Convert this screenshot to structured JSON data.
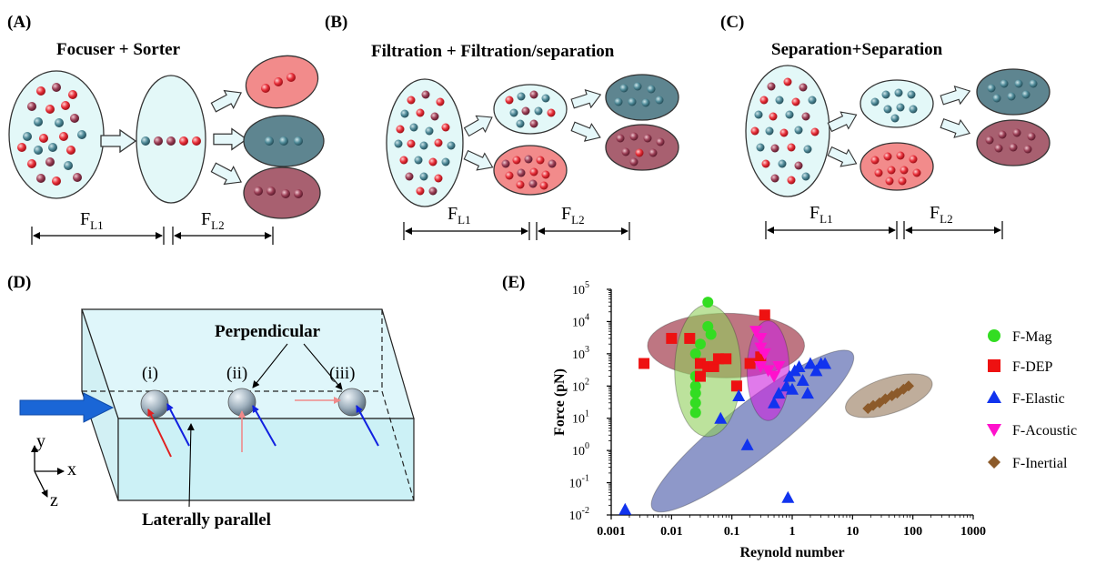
{
  "panels": {
    "a": {
      "tag": "(A)",
      "title": "Focuser + Sorter",
      "f1": "F",
      "f1_sub": "L1",
      "f2": "F",
      "f2_sub": "L2"
    },
    "b": {
      "tag": "(B)",
      "title": "Filtration + Filtration/separation",
      "f1": "F",
      "f1_sub": "L1",
      "f2": "F",
      "f2_sub": "L2"
    },
    "c": {
      "tag": "(C)",
      "title": "Separation+Separation",
      "f1": "F",
      "f1_sub": "L1",
      "f2": "F",
      "f2_sub": "L2"
    },
    "d": {
      "tag": "(D)",
      "perpendicular": "Perpendicular",
      "laterally": "Laterally parallel",
      "pos_i": "(i)",
      "pos_ii": "(ii)",
      "pos_iii": "(iii)",
      "axis_x": "x",
      "axis_y": "y",
      "axis_z": "z"
    },
    "e": {
      "tag": "(E)"
    }
  },
  "colors": {
    "cell_fill": "#e3f8f8",
    "red_particle": "#e8303a",
    "teal_particle": "#4f8a98",
    "maroon_particle": "#9c4057",
    "red_outlet": "#f28b8b",
    "teal_outlet": "#5e8590",
    "maroon_outlet": "#a86070",
    "arrow_blue": "#1a66d6"
  },
  "chart_data": {
    "type": "scatter",
    "xlabel": "Reynold number",
    "ylabel": "Force (pN)",
    "xscale": "log",
    "yscale": "log",
    "xlim": [
      0.001,
      1000
    ],
    "ylim": [
      0.01,
      100000
    ],
    "x_ticks": [
      "0.001",
      "0.01",
      "0.1",
      "1",
      "10",
      "100",
      "1000"
    ],
    "y_ticks": [
      {
        "base": "10",
        "exp": "-2"
      },
      {
        "base": "10",
        "exp": "-1"
      },
      {
        "base": "10",
        "exp": "0"
      },
      {
        "base": "10",
        "exp": "1"
      },
      {
        "base": "10",
        "exp": "2"
      },
      {
        "base": "10",
        "exp": "3"
      },
      {
        "base": "10",
        "exp": "4"
      },
      {
        "base": "10",
        "exp": "5"
      }
    ],
    "legend_position": "right",
    "series": [
      {
        "name": "F-Mag",
        "marker": "circle",
        "color": "#33dd22",
        "points": [
          [
            0.025,
            15
          ],
          [
            0.025,
            30
          ],
          [
            0.025,
            60
          ],
          [
            0.025,
            100
          ],
          [
            0.025,
            200
          ],
          [
            0.025,
            1000
          ],
          [
            0.04,
            40000
          ],
          [
            0.04,
            7000
          ],
          [
            0.03,
            2000
          ],
          [
            0.045,
            4000
          ]
        ]
      },
      {
        "name": "F-DEP",
        "marker": "square",
        "color": "#ee1111",
        "points": [
          [
            0.0035,
            500
          ],
          [
            0.01,
            3000
          ],
          [
            0.02,
            3000
          ],
          [
            0.03,
            500
          ],
          [
            0.03,
            200
          ],
          [
            0.04,
            400
          ],
          [
            0.05,
            400
          ],
          [
            0.06,
            700
          ],
          [
            0.08,
            700
          ],
          [
            0.12,
            100
          ],
          [
            0.2,
            500
          ],
          [
            0.3,
            800
          ],
          [
            0.35,
            16000
          ]
        ]
      },
      {
        "name": "F-Elastic",
        "marker": "triangle-up",
        "color": "#1133ee",
        "points": [
          [
            0.0017,
            0.015
          ],
          [
            0.065,
            10
          ],
          [
            0.13,
            50
          ],
          [
            0.18,
            1.5
          ],
          [
            0.5,
            30
          ],
          [
            0.6,
            60
          ],
          [
            0.8,
            100
          ],
          [
            0.9,
            200
          ],
          [
            1.0,
            80
          ],
          [
            1.1,
            300
          ],
          [
            1.3,
            400
          ],
          [
            1.5,
            150
          ],
          [
            1.8,
            60
          ],
          [
            2.0,
            500
          ],
          [
            2.5,
            300
          ],
          [
            3.0,
            500
          ],
          [
            3.5,
            500
          ],
          [
            0.85,
            0.035
          ]
        ]
      },
      {
        "name": "F-Acoustic",
        "marker": "triangle-down",
        "color": "#ff11cc",
        "points": [
          [
            0.25,
            5000
          ],
          [
            0.3,
            1500
          ],
          [
            0.3,
            400
          ],
          [
            0.35,
            1000
          ],
          [
            0.4,
            300
          ],
          [
            0.5,
            200
          ],
          [
            0.6,
            400
          ],
          [
            0.3,
            3000
          ]
        ]
      },
      {
        "name": "F-Inertial",
        "marker": "diamond",
        "color": "#8c5a2a",
        "points": [
          [
            18,
            20
          ],
          [
            22,
            25
          ],
          [
            28,
            30
          ],
          [
            35,
            40
          ],
          [
            45,
            50
          ],
          [
            55,
            60
          ],
          [
            70,
            80
          ],
          [
            85,
            100
          ]
        ]
      }
    ]
  }
}
